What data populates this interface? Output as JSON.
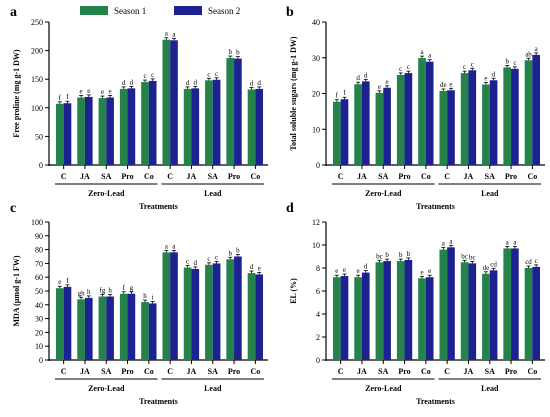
{
  "legend": {
    "s1": "Season 1",
    "s2": "Season 2"
  },
  "colors": {
    "s1": "#23834a",
    "s2": "#1c2391"
  },
  "groups": [
    "Zero-Lead",
    "Lead"
  ],
  "xlabel": "Treatments",
  "chart_data": [
    {
      "type": "bar",
      "panel": "a",
      "ylabel": "Free proline (mg g-1 DW)",
      "ylim": [
        0,
        250
      ],
      "yticks": [
        0,
        50,
        100,
        150,
        200,
        250
      ],
      "categories": [
        "C",
        "JA",
        "SA",
        "Pro",
        "Co",
        "C",
        "JA",
        "SA",
        "Pro",
        "Co"
      ],
      "groups": [
        "Zero-Lead",
        "Lead"
      ],
      "series": [
        {
          "name": "Season 1",
          "values": [
            107,
            118,
            117,
            133,
            145,
            219,
            133,
            148,
            187,
            132
          ]
        },
        {
          "name": "Season 2",
          "values": [
            108,
            119,
            118,
            134,
            147,
            218,
            134,
            149,
            186,
            133
          ]
        }
      ],
      "data_labels": [
        [
          "f",
          "e",
          "e",
          "d",
          "c",
          "a",
          "d",
          "c",
          "b",
          "d"
        ],
        [
          "f",
          "e",
          "e",
          "d",
          "c",
          "a",
          "d",
          "c",
          "b",
          "d"
        ]
      ]
    },
    {
      "type": "bar",
      "panel": "b",
      "ylabel": "Total soluble sugars (mg g-1 DW)",
      "ylim": [
        0,
        40
      ],
      "yticks": [
        0,
        10,
        20,
        30,
        40
      ],
      "categories": [
        "C",
        "JA",
        "SA",
        "Pro",
        "Co",
        "C",
        "JA",
        "SA",
        "Pro",
        "Co"
      ],
      "groups": [
        "Zero-Lead",
        "Lead"
      ],
      "series": [
        {
          "name": "Season 1",
          "values": [
            17.7,
            22.6,
            20.2,
            25.2,
            29.9,
            20.7,
            25.7,
            22.5,
            27.3,
            29.3
          ]
        },
        {
          "name": "Season 2",
          "values": [
            18.4,
            23.4,
            21.6,
            25.7,
            28.9,
            20.9,
            26.5,
            23.7,
            26.9,
            30.8
          ]
        }
      ],
      "data_labels": [
        [
          "f",
          "d",
          "e",
          "c",
          "a",
          "de",
          "c",
          "e",
          "b",
          "ab"
        ],
        [
          "f",
          "d",
          "e",
          "c",
          "a",
          "e",
          "c",
          "d",
          "c",
          "a"
        ]
      ]
    },
    {
      "type": "bar",
      "panel": "c",
      "ylabel": "MDA (µmol g-1 FW)",
      "ylim": [
        0,
        100
      ],
      "yticks": [
        0,
        10,
        20,
        30,
        40,
        50,
        60,
        70,
        80,
        90,
        100
      ],
      "categories": [
        "C",
        "JA",
        "SA",
        "Pro",
        "Co",
        "C",
        "JA",
        "SA",
        "Pro",
        "Co"
      ],
      "groups": [
        "Zero-Lead",
        "Lead"
      ],
      "series": [
        {
          "name": "Season 1",
          "values": [
            52,
            44,
            46,
            48,
            42,
            78,
            67,
            69,
            73,
            63
          ]
        },
        {
          "name": "Season 2",
          "values": [
            53,
            45,
            46,
            48,
            41,
            78,
            66,
            70,
            75,
            62
          ]
        }
      ],
      "data_labels": [
        [
          "e",
          "gh",
          "fg",
          "f",
          "h",
          "a",
          "c",
          "c",
          "b",
          "d"
        ],
        [
          "f",
          "h",
          "h",
          "g",
          "i",
          "a",
          "d",
          "c",
          "b",
          "e"
        ]
      ]
    },
    {
      "type": "bar",
      "panel": "d",
      "ylabel": "EL (%)",
      "ylim": [
        0,
        12
      ],
      "yticks": [
        0,
        2,
        4,
        6,
        8,
        10,
        12
      ],
      "categories": [
        "C",
        "JA",
        "SA",
        "Pro",
        "Co",
        "C",
        "JA",
        "SA",
        "Pro",
        "Co"
      ],
      "groups": [
        "Zero-Lead",
        "Lead"
      ],
      "series": [
        {
          "name": "Season 1",
          "values": [
            7.2,
            7.2,
            8.5,
            8.6,
            7.1,
            9.6,
            8.5,
            7.5,
            9.7,
            8.0
          ]
        },
        {
          "name": "Season 2",
          "values": [
            7.3,
            7.6,
            8.6,
            8.7,
            7.2,
            9.8,
            8.4,
            7.8,
            9.7,
            8.1
          ]
        }
      ],
      "data_labels": [
        [
          "e",
          "e",
          "bc",
          "b",
          "e",
          "a",
          "bc",
          "de",
          "a",
          "cd"
        ],
        [
          "e",
          "d",
          "b",
          "b",
          "e",
          "a",
          "bc",
          "cd",
          "a",
          "c"
        ]
      ]
    }
  ]
}
